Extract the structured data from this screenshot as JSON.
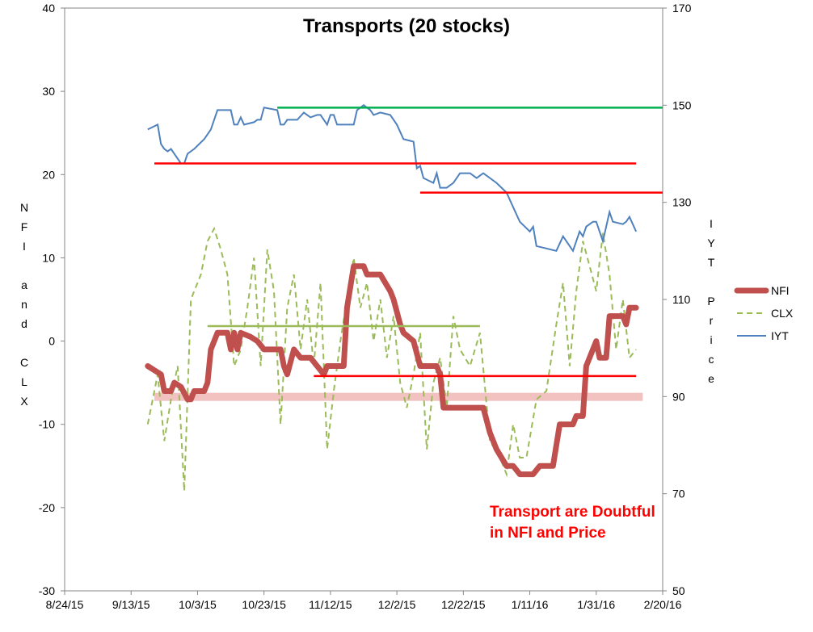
{
  "chart_data": {
    "type": "line",
    "title": "Transports (20 stocks)",
    "ylabel_left": "NFI and CLX",
    "ylabel_right": "IYT Price",
    "x_ticks": [
      "8/24/15",
      "9/13/15",
      "10/3/15",
      "10/23/15",
      "11/12/15",
      "12/2/15",
      "12/22/15",
      "1/11/16",
      "1/31/16",
      "2/20/16"
    ],
    "y_left_ticks": [
      -30,
      -20,
      -10,
      0,
      10,
      20,
      30,
      40
    ],
    "y_right_ticks": [
      50,
      70,
      90,
      110,
      130,
      150,
      170
    ],
    "y_left_range": [
      -30,
      40
    ],
    "y_right_range": [
      50,
      170
    ],
    "legend_position": "right",
    "series": [
      {
        "name": "NFI",
        "axis": "left",
        "color": "#c0504d",
        "style": "thick-solid",
        "points": [
          [
            "9/18/15",
            -3
          ],
          [
            "9/20/15",
            -3.5
          ],
          [
            "9/22/15",
            -4
          ],
          [
            "9/23/15",
            -6
          ],
          [
            "9/25/15",
            -6
          ],
          [
            "9/26/15",
            -5
          ],
          [
            "9/28/15",
            -5.5
          ],
          [
            "9/30/15",
            -7
          ],
          [
            "10/1/15",
            -7
          ],
          [
            "10/2/15",
            -6
          ],
          [
            "10/5/15",
            -6
          ],
          [
            "10/6/15",
            -5
          ],
          [
            "10/7/15",
            -1
          ],
          [
            "10/9/15",
            1
          ],
          [
            "10/12/15",
            1
          ],
          [
            "10/13/15",
            -1
          ],
          [
            "10/14/15",
            1
          ],
          [
            "10/15/15",
            -1
          ],
          [
            "10/16/15",
            1
          ],
          [
            "10/19/15",
            0.5
          ],
          [
            "10/21/15",
            0
          ],
          [
            "10/23/15",
            -1
          ],
          [
            "10/28/15",
            -1
          ],
          [
            "10/29/15",
            -3
          ],
          [
            "10/30/15",
            -4
          ],
          [
            "11/1/15",
            -1
          ],
          [
            "11/3/15",
            -2
          ],
          [
            "11/6/15",
            -2
          ],
          [
            "11/8/15",
            -3
          ],
          [
            "11/10/15",
            -4
          ],
          [
            "11/11/15",
            -3
          ],
          [
            "11/16/15",
            -3
          ],
          [
            "11/17/15",
            4
          ],
          [
            "11/19/15",
            9
          ],
          [
            "11/22/15",
            9
          ],
          [
            "11/23/15",
            8
          ],
          [
            "11/27/15",
            8
          ],
          [
            "11/30/15",
            6
          ],
          [
            "12/1/15",
            5
          ],
          [
            "12/3/15",
            2
          ],
          [
            "12/4/15",
            1
          ],
          [
            "12/7/15",
            0
          ],
          [
            "12/9/15",
            -3
          ],
          [
            "12/14/15",
            -3
          ],
          [
            "12/15/15",
            -4
          ],
          [
            "12/16/15",
            -8
          ],
          [
            "12/28/15",
            -8
          ],
          [
            "12/30/15",
            -11
          ],
          [
            "1/1/16",
            -13
          ],
          [
            "1/4/16",
            -15
          ],
          [
            "1/6/16",
            -15
          ],
          [
            "1/8/16",
            -16
          ],
          [
            "1/12/16",
            -16
          ],
          [
            "1/14/16",
            -15
          ],
          [
            "1/18/16",
            -15
          ],
          [
            "1/20/16",
            -10
          ],
          [
            "1/24/16",
            -10
          ],
          [
            "1/25/16",
            -9
          ],
          [
            "1/27/16",
            -9
          ],
          [
            "1/28/16",
            -3
          ],
          [
            "1/31/16",
            0
          ],
          [
            "2/1/16",
            -2
          ],
          [
            "2/3/16",
            -2
          ],
          [
            "2/4/16",
            3
          ],
          [
            "2/8/16",
            3
          ],
          [
            "2/9/16",
            2
          ],
          [
            "2/10/16",
            4
          ],
          [
            "2/12/16",
            4
          ]
        ]
      },
      {
        "name": "CLX",
        "axis": "left",
        "color": "#9bbb59",
        "style": "dashed",
        "points": [
          [
            "9/18/15",
            -10
          ],
          [
            "9/21/15",
            -4
          ],
          [
            "9/23/15",
            -12
          ],
          [
            "9/25/15",
            -7
          ],
          [
            "9/27/15",
            -3
          ],
          [
            "9/29/15",
            -18
          ],
          [
            "10/1/15",
            5
          ],
          [
            "10/4/15",
            8
          ],
          [
            "10/6/15",
            12
          ],
          [
            "10/8/15",
            13.5
          ],
          [
            "10/10/15",
            11
          ],
          [
            "10/12/15",
            8
          ],
          [
            "10/14/15",
            -3
          ],
          [
            "10/16/15",
            -1
          ],
          [
            "10/18/15",
            4
          ],
          [
            "10/20/15",
            10
          ],
          [
            "10/22/15",
            -3
          ],
          [
            "10/24/15",
            11
          ],
          [
            "10/26/15",
            6
          ],
          [
            "10/28/15",
            -10
          ],
          [
            "10/30/15",
            4
          ],
          [
            "11/1/15",
            8
          ],
          [
            "11/3/15",
            -1
          ],
          [
            "11/5/15",
            5
          ],
          [
            "11/7/15",
            -3
          ],
          [
            "11/9/15",
            7
          ],
          [
            "11/11/15",
            -13
          ],
          [
            "11/13/15",
            -6
          ],
          [
            "11/15/15",
            0
          ],
          [
            "11/17/15",
            5
          ],
          [
            "11/19/15",
            10
          ],
          [
            "11/21/15",
            4
          ],
          [
            "11/23/15",
            7
          ],
          [
            "11/25/15",
            0
          ],
          [
            "11/27/15",
            5
          ],
          [
            "11/29/15",
            -2
          ],
          [
            "12/1/15",
            3
          ],
          [
            "12/3/15",
            -5
          ],
          [
            "12/5/15",
            -8
          ],
          [
            "12/7/15",
            -4
          ],
          [
            "12/9/15",
            1
          ],
          [
            "12/11/15",
            -13
          ],
          [
            "12/13/15",
            -5
          ],
          [
            "12/15/15",
            -2
          ],
          [
            "12/17/15",
            -8
          ],
          [
            "12/19/15",
            3
          ],
          [
            "12/21/15",
            -1
          ],
          [
            "12/24/15",
            -3
          ],
          [
            "12/27/15",
            1
          ],
          [
            "12/30/15",
            -12
          ],
          [
            "1/2/16",
            -14
          ],
          [
            "1/4/16",
            -16
          ],
          [
            "1/6/16",
            -10
          ],
          [
            "1/8/16",
            -14
          ],
          [
            "1/10/16",
            -14
          ],
          [
            "1/13/16",
            -7
          ],
          [
            "1/16/16",
            -6
          ],
          [
            "1/19/16",
            2
          ],
          [
            "1/21/16",
            7
          ],
          [
            "1/23/16",
            -3
          ],
          [
            "1/25/16",
            6
          ],
          [
            "1/27/16",
            12
          ],
          [
            "1/29/16",
            9
          ],
          [
            "1/31/16",
            6
          ],
          [
            "2/2/16",
            13
          ],
          [
            "2/4/16",
            8
          ],
          [
            "2/6/16",
            -1
          ],
          [
            "2/8/16",
            5
          ],
          [
            "2/10/16",
            -2
          ],
          [
            "2/12/16",
            -1
          ]
        ]
      },
      {
        "name": "IYT",
        "axis": "right",
        "color": "#4f81bd",
        "style": "solid",
        "points": [
          [
            "9/18/15",
            145
          ],
          [
            "9/21/15",
            146
          ],
          [
            "9/22/15",
            142
          ],
          [
            "9/23/15",
            141
          ],
          [
            "9/24/15",
            140.5
          ],
          [
            "9/25/15",
            141
          ],
          [
            "9/28/15",
            138
          ],
          [
            "9/29/15",
            138
          ],
          [
            "9/30/15",
            140
          ],
          [
            "10/2/15",
            141
          ],
          [
            "10/5/15",
            143
          ],
          [
            "10/6/15",
            144
          ],
          [
            "10/7/15",
            145
          ],
          [
            "10/8/15",
            147
          ],
          [
            "10/9/15",
            149
          ],
          [
            "10/13/15",
            149
          ],
          [
            "10/14/15",
            146
          ],
          [
            "10/15/15",
            146
          ],
          [
            "10/16/15",
            147.5
          ],
          [
            "10/17/15",
            146
          ],
          [
            "10/20/15",
            146.5
          ],
          [
            "10/21/15",
            147
          ],
          [
            "10/22/15",
            147
          ],
          [
            "10/23/15",
            149.5
          ],
          [
            "10/27/15",
            149
          ],
          [
            "10/28/15",
            146
          ],
          [
            "10/29/15",
            146
          ],
          [
            "10/30/15",
            147
          ],
          [
            "11/2/15",
            147
          ],
          [
            "11/4/15",
            148.5
          ],
          [
            "11/5/15",
            148
          ],
          [
            "11/6/15",
            147.5
          ],
          [
            "11/8/15",
            148
          ],
          [
            "11/9/15",
            148
          ],
          [
            "11/11/15",
            146
          ],
          [
            "11/12/15",
            148
          ],
          [
            "11/13/15",
            148
          ],
          [
            "11/14/15",
            146
          ],
          [
            "11/19/15",
            146
          ],
          [
            "11/20/15",
            149
          ],
          [
            "11/22/15",
            150
          ],
          [
            "11/24/15",
            149
          ],
          [
            "11/25/15",
            148
          ],
          [
            "11/27/15",
            148.5
          ],
          [
            "11/30/15",
            148
          ],
          [
            "12/2/15",
            146
          ],
          [
            "12/4/15",
            143
          ],
          [
            "12/7/15",
            142.5
          ],
          [
            "12/8/15",
            137
          ],
          [
            "12/9/15",
            137.5
          ],
          [
            "12/10/15",
            135
          ],
          [
            "12/13/15",
            134
          ],
          [
            "12/14/15",
            136
          ],
          [
            "12/15/15",
            133
          ],
          [
            "12/17/15",
            133
          ],
          [
            "12/19/15",
            134
          ],
          [
            "12/21/15",
            136
          ],
          [
            "12/24/15",
            136
          ],
          [
            "12/26/15",
            135
          ],
          [
            "12/28/15",
            136
          ],
          [
            "1/1/16",
            134
          ],
          [
            "1/4/16",
            132
          ],
          [
            "1/6/16",
            129
          ],
          [
            "1/8/16",
            126
          ],
          [
            "1/11/16",
            124
          ],
          [
            "1/12/16",
            125
          ],
          [
            "1/13/16",
            121
          ],
          [
            "1/19/16",
            120
          ],
          [
            "1/21/16",
            123
          ],
          [
            "1/22/16",
            122
          ],
          [
            "1/24/16",
            120
          ],
          [
            "1/26/16",
            124
          ],
          [
            "1/27/16",
            123
          ],
          [
            "1/28/16",
            125
          ],
          [
            "1/30/16",
            126
          ],
          [
            "1/31/16",
            126
          ],
          [
            "2/2/16",
            122
          ],
          [
            "2/4/16",
            128
          ],
          [
            "2/5/16",
            126
          ],
          [
            "2/8/16",
            125.5
          ],
          [
            "2/9/16",
            126
          ],
          [
            "2/10/16",
            127
          ],
          [
            "2/12/16",
            124
          ]
        ]
      }
    ],
    "reference_lines": [
      {
        "axis": "right",
        "color": "#00b050",
        "from": [
          "10/27/15",
          149.5
        ],
        "to": [
          "2/20/16",
          149.5
        ]
      },
      {
        "axis": "right",
        "color": "#ff0000",
        "from": [
          "9/20/15",
          138
        ],
        "to": [
          "2/12/16",
          138
        ]
      },
      {
        "axis": "right",
        "color": "#ff0000",
        "from": [
          "12/9/15",
          132
        ],
        "to": [
          "2/20/16",
          132
        ]
      },
      {
        "axis": "left",
        "color": "#9bbb59",
        "from": [
          "10/6/15",
          1.8
        ],
        "to": [
          "12/27/15",
          1.8
        ]
      },
      {
        "axis": "left",
        "color": "#ff0000",
        "from": [
          "11/7/15",
          -4.2
        ],
        "to": [
          "2/12/16",
          -4.2
        ]
      }
    ],
    "bands": [
      {
        "axis": "left",
        "color": "#f2c2c0",
        "from": "9/20/15",
        "to": "2/14/16",
        "y": -6.7
      }
    ],
    "annotation": {
      "lines": [
        "Transport are Doubtful",
        "in NFI and Price"
      ],
      "color": "#ff0000"
    }
  }
}
